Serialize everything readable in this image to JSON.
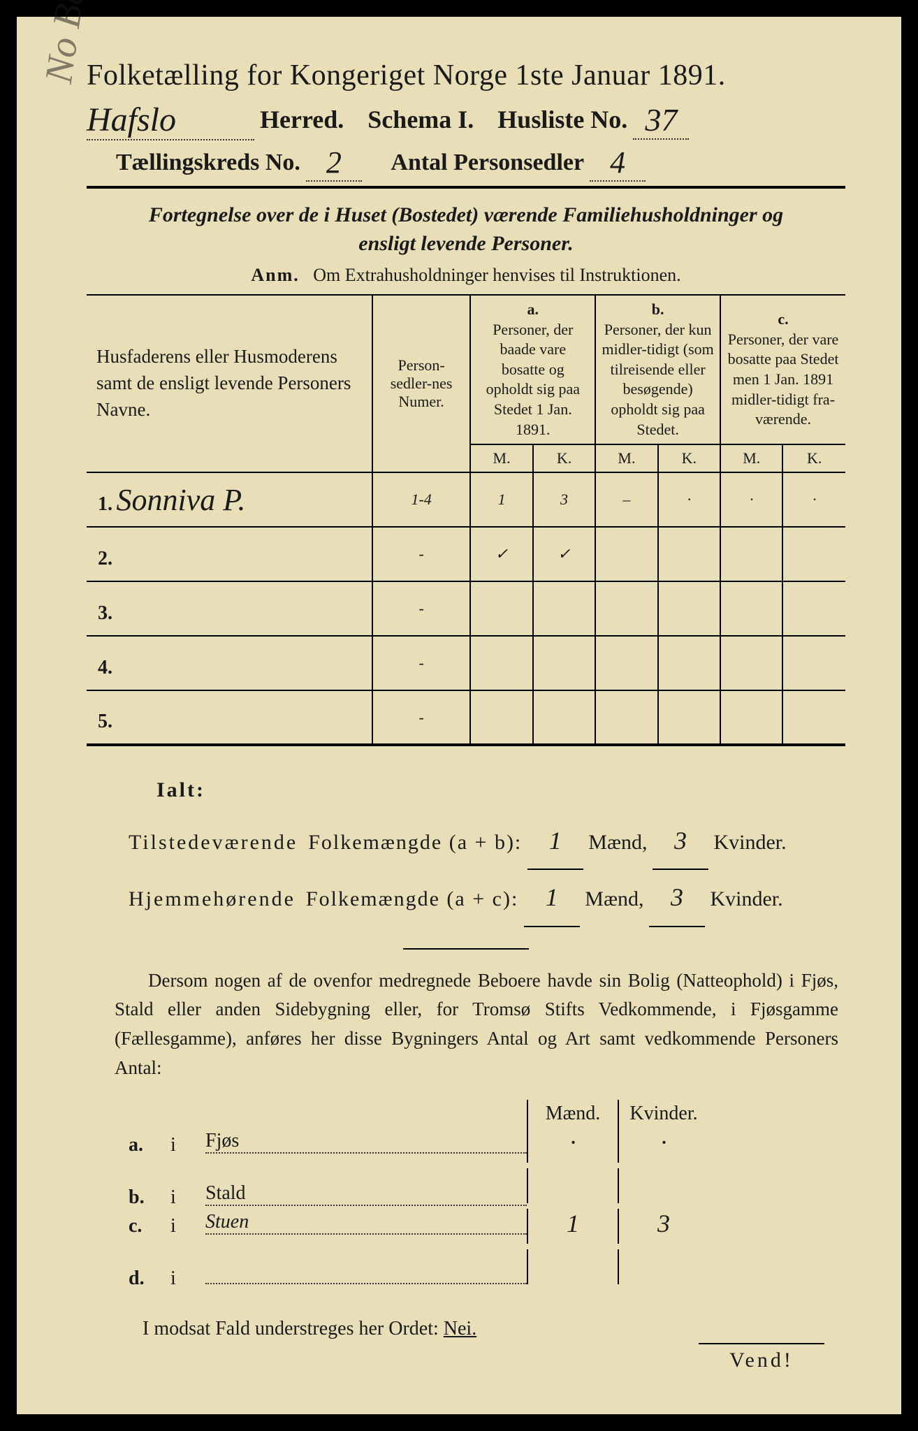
{
  "colors": {
    "paper": "#e8dfb8",
    "ink": "#1a1a1a",
    "frame": "#000000"
  },
  "header": {
    "title": "Folketælling for Kongeriget Norge 1ste Januar 1891.",
    "herred_value": "Hafslo",
    "schema_label": "Schema I.",
    "husliste_label": "Husliste No.",
    "husliste_value": "37",
    "kreds_label": "Tællingskreds No.",
    "kreds_value": "2",
    "antal_label": "Antal Personsedler",
    "antal_value": "4",
    "herred_label": "Herred."
  },
  "subtitle": "Fortegnelse over de i Huset (Bostedet) værende Familiehusholdninger og ensligt levende Personer.",
  "anm": "Om Extrahusholdninger henvises til Instruktionen.",
  "anm_prefix": "Anm.",
  "columns": {
    "name": "Husfaderens eller Husmoderens samt de ensligt levende Personers Navne.",
    "num": "Person-sedler-nes Numer.",
    "a_head": "a.",
    "a": "Personer, der baade vare bosatte og opholdt sig paa Stedet 1 Jan. 1891.",
    "b_head": "b.",
    "b": "Personer, der kun midler-tidigt (som tilreisende eller besøgende) opholdt sig paa Stedet.",
    "c_head": "c.",
    "c": "Personer, der vare bosatte paa Stedet men 1 Jan. 1891 midler-tidigt fra-værende.",
    "m": "M.",
    "k": "K."
  },
  "rows": [
    {
      "n": "1.",
      "name": "Sonniva P.",
      "num": "1-4",
      "aM": "1",
      "aK": "3",
      "bM": "–",
      "bK": "·",
      "cM": "·",
      "cK": "·"
    },
    {
      "n": "2.",
      "name": "",
      "num": "-",
      "aM": "✓",
      "aK": "✓",
      "bM": "",
      "bK": "",
      "cM": "",
      "cK": ""
    },
    {
      "n": "3.",
      "name": "",
      "num": "-",
      "aM": "",
      "aK": "",
      "bM": "",
      "bK": "",
      "cM": "",
      "cK": ""
    },
    {
      "n": "4.",
      "name": "",
      "num": "-",
      "aM": "",
      "aK": "",
      "bM": "",
      "bK": "",
      "cM": "",
      "cK": ""
    },
    {
      "n": "5.",
      "name": "",
      "num": "-",
      "aM": "",
      "aK": "",
      "bM": "",
      "bK": "",
      "cM": "",
      "cK": ""
    }
  ],
  "ialt": {
    "label": "Ialt:",
    "line1_a": "Tilstedeværende",
    "line1_b": "Folkemængde (a + b):",
    "line2_a": "Hjemmehørende",
    "line2_b": "Folkemængde (a + c):",
    "maend": "Mænd,",
    "kvinder": "Kvinder.",
    "v1m": "1",
    "v1k": "3",
    "v2m": "1",
    "v2k": "3"
  },
  "para": "Dersom nogen af de ovenfor medregnede Beboere havde sin Bolig (Natteophold) i Fjøs, Stald eller anden Sidebygning eller, for Tromsø Stifts Vedkommende, i Fjøsgamme (Fællesgamme), anføres her disse Bygningers Antal og Art samt vedkommende Personers Antal:",
  "side": {
    "head_m": "Mænd.",
    "head_k": "Kvinder.",
    "rows": [
      {
        "lab": "a.",
        "i": "i",
        "txt": "Fjøs",
        "m": "·",
        "k": "·"
      },
      {
        "lab": "b.",
        "i": "i",
        "txt": "Stald",
        "m": "",
        "k": ""
      },
      {
        "lab": "c.",
        "i": "i",
        "txt": "Stuen",
        "m": "1",
        "k": "3"
      },
      {
        "lab": "d.",
        "i": "i",
        "txt": "",
        "m": "",
        "k": ""
      }
    ]
  },
  "nei": "I modsat Fald understreges her Ordet: Nei.",
  "vend": "Vend!",
  "margin": "No Beers"
}
